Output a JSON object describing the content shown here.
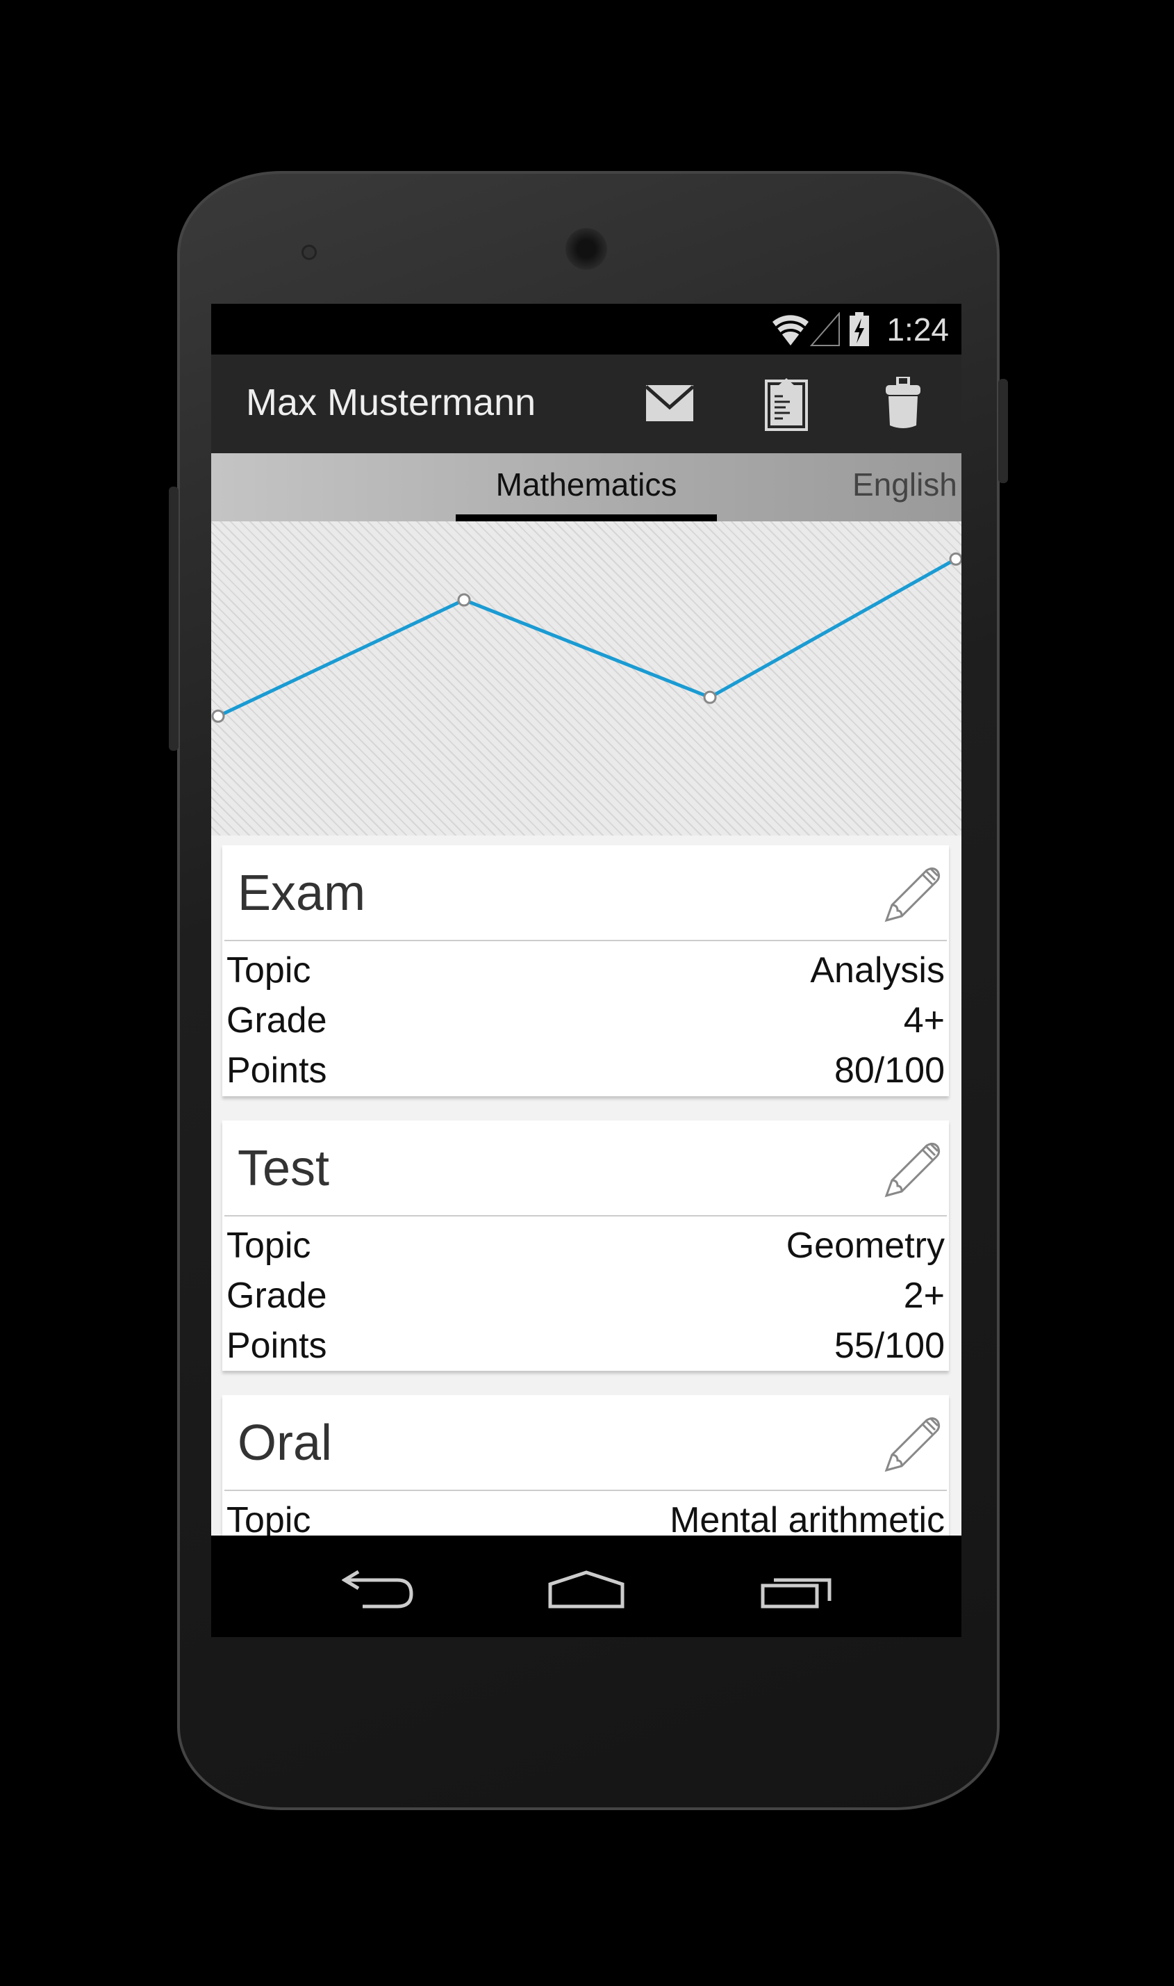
{
  "status_bar": {
    "time": "1:24",
    "icons": [
      "wifi-icon",
      "signal-icon",
      "battery-charging-icon"
    ]
  },
  "action_bar": {
    "title": "Max Mustermann",
    "actions": [
      "mail-icon",
      "clipboard-icon",
      "trash-icon"
    ]
  },
  "tabs": [
    {
      "label": "Mathematics",
      "active": true
    },
    {
      "label": "English",
      "active": false
    }
  ],
  "accent_color": "#1a9bd3",
  "chart_data": {
    "type": "line",
    "x": [
      1,
      2,
      3,
      4
    ],
    "series": [
      {
        "values": [
          38,
          75,
          44,
          88
        ]
      }
    ],
    "ylim": [
      0,
      100
    ],
    "grid": false,
    "axes_visible": false,
    "color": "#1a9bd3"
  },
  "cards": [
    {
      "title": "Exam",
      "rows": [
        {
          "label": "Topic",
          "value": "Analysis"
        },
        {
          "label": "Grade",
          "value": "4+"
        },
        {
          "label": "Points",
          "value": "80/100"
        }
      ]
    },
    {
      "title": "Test",
      "rows": [
        {
          "label": "Topic",
          "value": "Geometry"
        },
        {
          "label": "Grade",
          "value": "2+"
        },
        {
          "label": "Points",
          "value": "55/100"
        }
      ]
    },
    {
      "title": "Oral",
      "rows": [
        {
          "label": "Topic",
          "value": "Mental arithmetic"
        }
      ]
    }
  ],
  "nav_bar": [
    "back-icon",
    "home-icon",
    "recent-apps-icon"
  ]
}
